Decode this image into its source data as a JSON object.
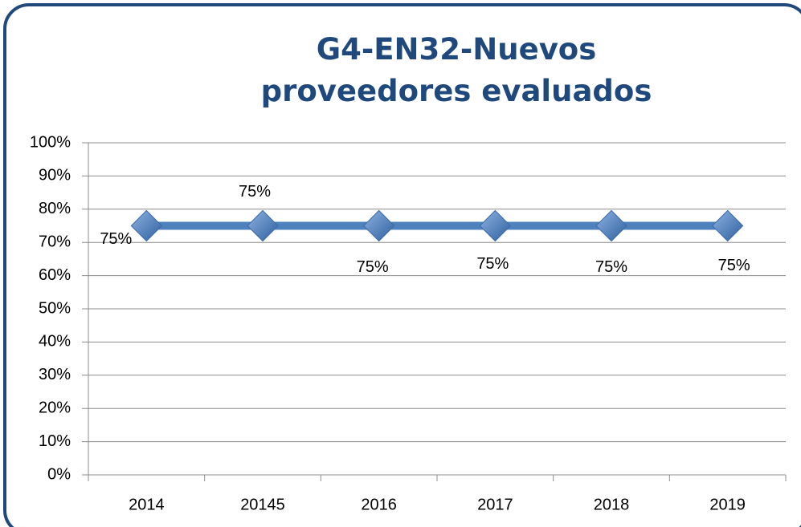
{
  "chart_data": {
    "type": "line",
    "title": "G4-EN32-Nuevos proveedores evaluados",
    "categories": [
      "2014",
      "20145",
      "2016",
      "2017",
      "2018",
      "2019"
    ],
    "series": [
      {
        "name": null,
        "color": "#4f81bd",
        "values": [
          75,
          75,
          75,
          75,
          75,
          75
        ],
        "value_labels": [
          "75%",
          "75%",
          "75%",
          "75%",
          "75%",
          "75%"
        ]
      }
    ],
    "ylim": [
      0,
      100
    ],
    "yticks": [
      {
        "value": 0,
        "label": "0%"
      },
      {
        "value": 10,
        "label": "10%"
      },
      {
        "value": 20,
        "label": "20%"
      },
      {
        "value": 30,
        "label": "30%"
      },
      {
        "value": 40,
        "label": "40%"
      },
      {
        "value": 50,
        "label": "50%"
      },
      {
        "value": 60,
        "label": "60%"
      },
      {
        "value": 70,
        "label": "70%"
      },
      {
        "value": 80,
        "label": "80%"
      },
      {
        "value": 90,
        "label": "90%"
      },
      {
        "value": 100,
        "label": "100%"
      }
    ],
    "grid": true
  }
}
